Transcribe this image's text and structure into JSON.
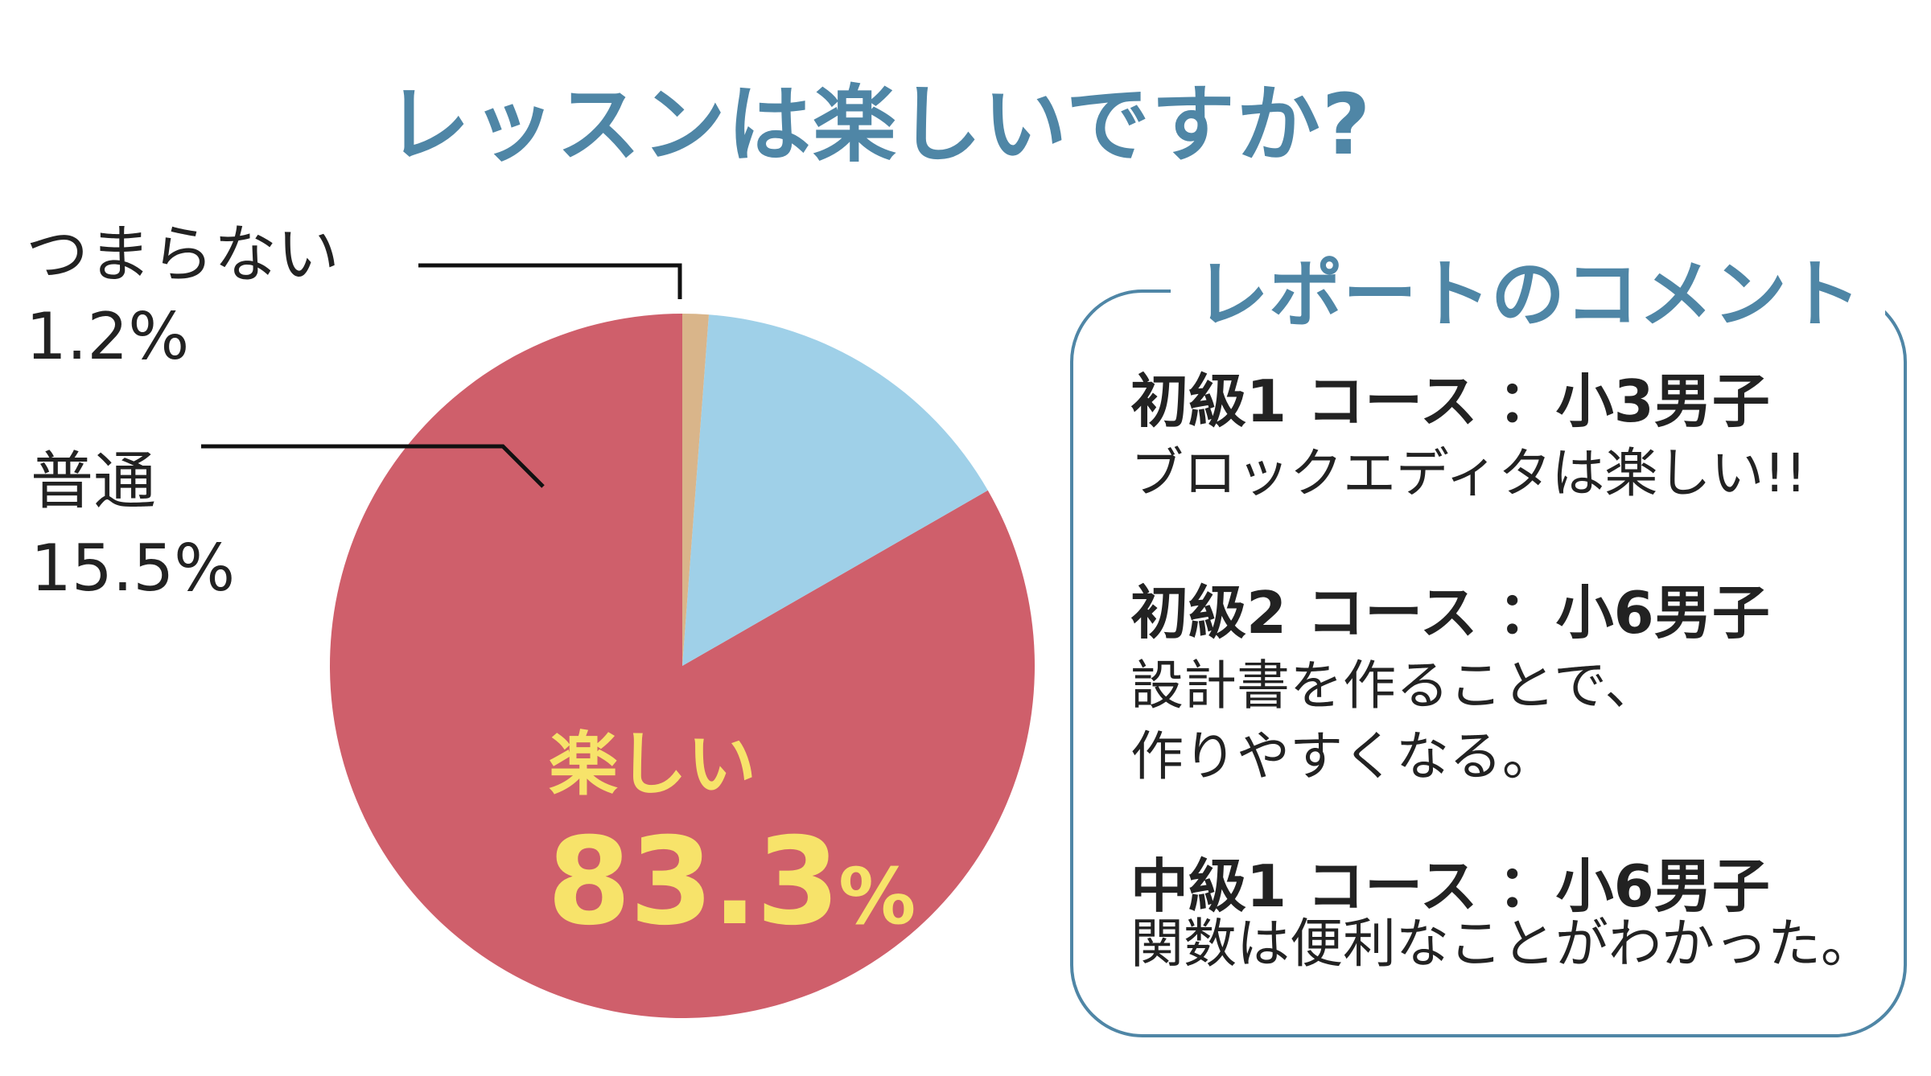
{
  "chart_data": {
    "type": "pie",
    "title": "レッスンは楽しいですか?",
    "slices": [
      {
        "label": "楽しい",
        "value": 83.3,
        "value_label": "83.3",
        "unit": "%",
        "color": "#cf5f6b"
      },
      {
        "label": "普通",
        "value": 15.5,
        "value_label": "15.5%",
        "color": "#9fd0e8"
      },
      {
        "label": "つまらない",
        "value": 1.2,
        "value_label": "1.2%",
        "color": "#d9b58a"
      }
    ]
  },
  "comments_panel": {
    "title": "レポートのコメント",
    "entries": [
      {
        "header": "初級1 コース ：小3男子",
        "lines": [
          "ブロックエディタは楽しい!!"
        ]
      },
      {
        "header": "初級2 コース ：小6男子",
        "lines": [
          "設計書を作ることで、",
          "作りやすくなる。"
        ]
      },
      {
        "header": "中級1 コース ：小6男子",
        "lines": [
          "関数は便利なことがわかった。"
        ]
      }
    ]
  }
}
